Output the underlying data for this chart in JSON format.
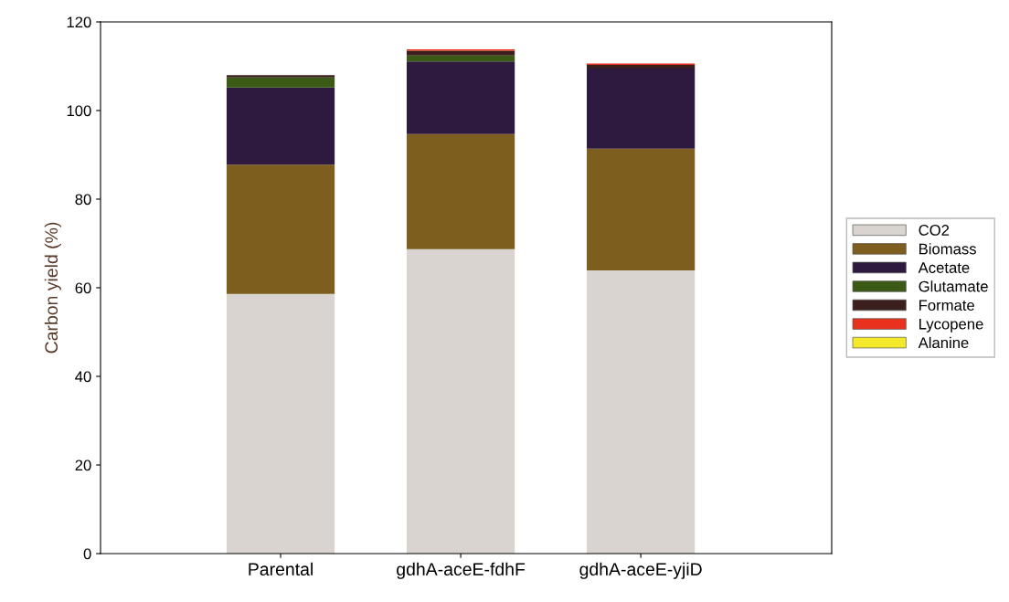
{
  "chart_data": {
    "type": "bar",
    "stacked": true,
    "ylabel": "Carbon yield (%)",
    "categories": [
      "Parental",
      "gdhA-aceE-fdhF",
      "gdhA-aceE-yjiD"
    ],
    "series": [
      {
        "name": "CO2",
        "color": "#d9d4cf",
        "values": [
          58.6,
          68.7,
          63.9
        ]
      },
      {
        "name": "Biomass",
        "color": "#7d5e1e",
        "values": [
          29.2,
          26.0,
          27.5
        ]
      },
      {
        "name": "Acetate",
        "color": "#2e1a3e",
        "values": [
          17.4,
          16.4,
          18.1
        ]
      },
      {
        "name": "Glutamate",
        "color": "#3b5a16",
        "values": [
          2.3,
          1.3,
          0
        ]
      },
      {
        "name": "Formate",
        "color": "#3a1f1c",
        "values": [
          0.5,
          1.1,
          0.8
        ]
      },
      {
        "name": "Lycopene",
        "color": "#e8321e",
        "values": [
          0,
          0.3,
          0.3
        ]
      },
      {
        "name": "Alanine",
        "color": "#f5ea2a",
        "values": [
          0,
          0,
          0
        ]
      }
    ],
    "ylim": [
      0,
      120
    ],
    "yticks": [
      0,
      20,
      40,
      60,
      80,
      100,
      120
    ],
    "grid": false,
    "legend": "right"
  }
}
